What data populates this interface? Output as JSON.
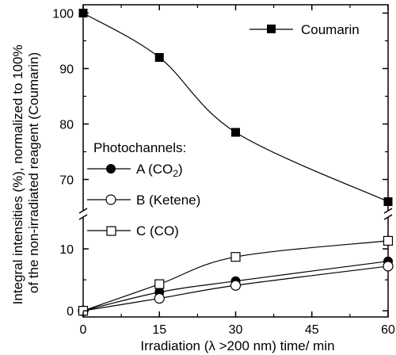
{
  "chart_data": {
    "type": "line",
    "xlabel": "Irradiation (λ >200 nm) time/ min",
    "ylabel": "Integral intensities (%), normalized to 100% of the non-irradiated reagent (Coumarin)",
    "x_ticks": [
      "0",
      "15",
      "30",
      "45",
      "60"
    ],
    "xlim": [
      0,
      60
    ],
    "y_axis_broken": true,
    "upper_panel": {
      "ylim": [
        64.5,
        101.5
      ],
      "y_ticks": [
        "70",
        "80",
        "90",
        "100"
      ]
    },
    "lower_panel": {
      "ylim": [
        -1,
        15
      ],
      "y_ticks": [
        "0",
        "10"
      ]
    },
    "legend_heading": "Photochannels:",
    "series": [
      {
        "name": "Coumarin",
        "panel": "upper",
        "marker": "filled-square",
        "color": "#000000",
        "x": [
          0,
          15,
          30,
          60
        ],
        "y": [
          100,
          92,
          78.5,
          66
        ]
      },
      {
        "name": "A (CO₂)",
        "panel": "lower",
        "marker": "filled-circle",
        "color": "#000000",
        "x": [
          0,
          15,
          30,
          60
        ],
        "y": [
          0,
          3,
          4.8,
          8
        ]
      },
      {
        "name": "B (Ketene)",
        "panel": "lower",
        "marker": "open-circle",
        "color": "#000000",
        "x": [
          0,
          15,
          30,
          60
        ],
        "y": [
          0,
          2,
          4.1,
          7.2
        ]
      },
      {
        "name": "C (CO)",
        "panel": "lower",
        "marker": "open-square",
        "color": "#000000",
        "x": [
          0,
          15,
          30,
          60
        ],
        "y": [
          0,
          4.3,
          8.7,
          11.3
        ]
      }
    ]
  }
}
